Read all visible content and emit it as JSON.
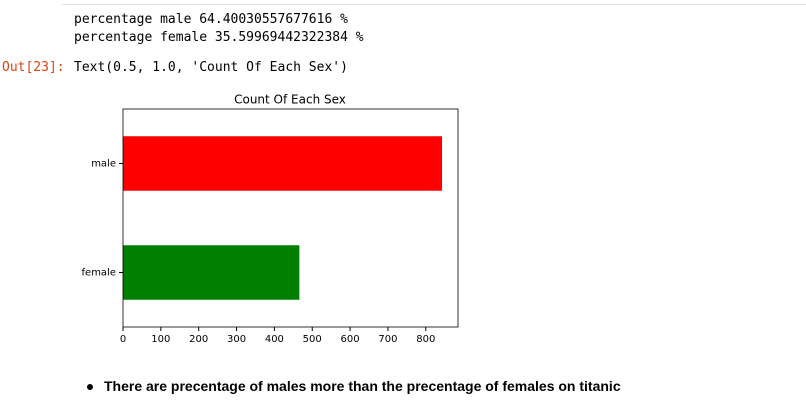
{
  "output": {
    "lines": [
      "percentage male 64.40030557677616 %",
      "percentage female 35.59969442322384 %"
    ],
    "prompt": "Out[23]:",
    "result": "Text(0.5, 1.0, 'Count Of Each Sex')"
  },
  "chart_data": {
    "type": "barh",
    "title": "Count Of Each Sex",
    "categories": [
      "male",
      "female"
    ],
    "values": [
      843,
      466
    ],
    "colors": [
      "#ff0000",
      "#008000"
    ],
    "xlim": [
      0,
      885.15
    ],
    "xticks": [
      0,
      100,
      200,
      300,
      400,
      500,
      600,
      700,
      800
    ]
  },
  "markdown": {
    "bullets": [
      "There are precentage of males more than the precentage of females on titanic"
    ]
  }
}
